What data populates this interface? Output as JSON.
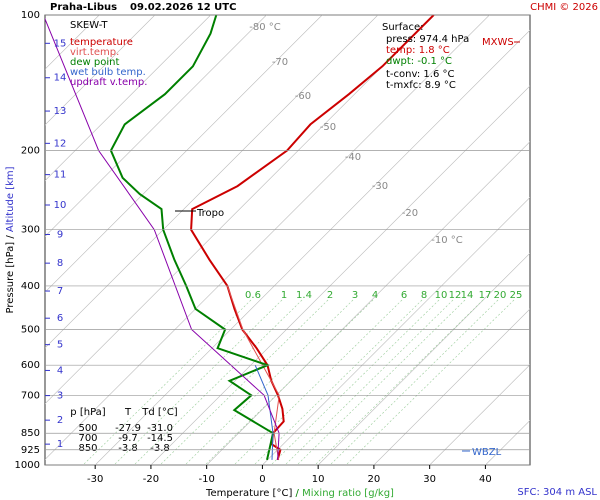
{
  "chart_data": {
    "type": "skewt",
    "title": "Praha-Libus",
    "subtitle": "09.02.2026 12 UTC",
    "credit": "CHMI © 2026",
    "diagram_label": "SKEW-T",
    "y_label": "Pressure [hPa]",
    "y_label_sep": "/",
    "y2_label": "Altitude [km]",
    "x_label": "Temperature [°C]",
    "x_label_sep": "/",
    "x2_label": "Mixing ratio [g/kg]",
    "log_scale": true,
    "grid": true,
    "ylim": [
      1000,
      100
    ],
    "yticks": [
      100,
      200,
      300,
      400,
      500,
      600,
      700,
      850,
      925,
      1000
    ],
    "xlim": [
      -39,
      48
    ],
    "xticks": [
      -30,
      -20,
      -10,
      0,
      10,
      20,
      30,
      40
    ],
    "y2ticks": [
      1,
      2,
      3,
      4,
      5,
      6,
      7,
      8,
      9,
      10,
      11,
      12,
      13,
      14,
      15
    ],
    "isotherm_labels": [
      "-80 °C",
      "-70",
      "-60",
      "-50",
      "-40",
      "-30",
      "-20",
      "-10 °C"
    ],
    "mixing_ratio_labels": [
      "0.6",
      "1",
      "1.4",
      "2",
      "3",
      "4",
      "6",
      "8",
      "10",
      "12",
      "14",
      "17",
      "20",
      "25"
    ],
    "series": [
      {
        "name": "temperature",
        "color": "#cc0000",
        "pressure": [
          974,
          925,
          900,
          850,
          800,
          750,
          700,
          650,
          600,
          550,
          500,
          450,
          400,
          350,
          300,
          270,
          240,
          200,
          175,
          150,
          130,
          100
        ],
        "values": [
          1.8,
          0.5,
          -2,
          -3.8,
          -4,
          -6.5,
          -9.7,
          -13.5,
          -17,
          -22,
          -27.9,
          -33,
          -38.4,
          -46.3,
          -55,
          -58.5,
          -54.5,
          -52,
          -52.5,
          -51,
          -50,
          -50
        ]
      },
      {
        "name": "virt.temp.",
        "color": "#e05050",
        "pressure": [
          974,
          850,
          700,
          500,
          400
        ],
        "values": [
          2.0,
          -3.6,
          -9.5,
          -27.8,
          -38.4
        ]
      },
      {
        "name": "dew point",
        "color": "#008000",
        "pressure": [
          974,
          925,
          850,
          755,
          700,
          650,
          600,
          550,
          500,
          450,
          400,
          350,
          300,
          270,
          250,
          230,
          200,
          175,
          150,
          130,
          110,
          100
        ],
        "values": [
          -0.1,
          -1.5,
          -3.8,
          -14.9,
          -14.5,
          -21,
          -17,
          -29,
          -31,
          -40,
          -45.8,
          -52.6,
          -60,
          -64,
          -70.6,
          -76.6,
          -83.6,
          -85.8,
          -84,
          -84,
          -86.7,
          -89
        ]
      },
      {
        "name": "wet bulb temp.",
        "color": "#3366cc",
        "pressure": [
          974,
          850,
          700,
          600
        ],
        "values": [
          0.8,
          -3.8,
          -11.5,
          -19.2
        ]
      },
      {
        "name": "updraft v.temp.",
        "color": "#8800aa",
        "pressure": [
          974,
          850,
          700,
          500,
          300,
          200,
          100
        ],
        "values": [
          1.8,
          -2.7,
          -12.2,
          -37,
          -61.6,
          -85.8,
          -120
        ]
      }
    ],
    "surface": {
      "heading": "Surface:",
      "press": "press: 974.4 hPa",
      "temp": "temp: 1.8 °C",
      "dwpt": "dwpt: -0.1 °C",
      "tconv": "t-conv: 1.6 °C",
      "tmxfc": "t-mxfc: 8.9 °C"
    },
    "table": {
      "header": [
        "p [hPa]",
        "T",
        "Td [°C]"
      ],
      "rows": [
        [
          "500",
          "-27.9",
          "-31.0"
        ],
        [
          "700",
          "-9.7",
          "-14.5"
        ],
        [
          "850",
          "-3.8",
          "-3.8"
        ]
      ]
    },
    "tropo_label": "Tropo",
    "mxws_label": "MXWS",
    "wbzl_label": "WBZL",
    "sfc_label": "SFC: 304 m ASL"
  }
}
